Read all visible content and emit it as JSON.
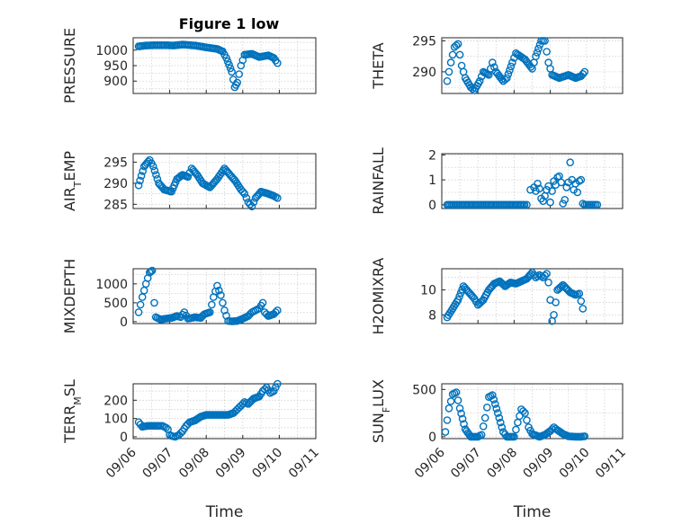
{
  "colors": {
    "marker": "#0072bd",
    "axis": "#262626",
    "grid": "#d0d0d0"
  },
  "chart_data": [
    {
      "type": "scatter",
      "title": "Figure 1 low",
      "ylabel": "PRESSURE",
      "xlim": [
        0,
        5
      ],
      "ylim": [
        860,
        1040
      ],
      "yticks": [
        900,
        950,
        1000
      ],
      "xticks": [],
      "xticklabels": [],
      "xlabel": "",
      "anchors": [
        [
          0.15,
          1012
        ],
        [
          0.35,
          1015
        ],
        [
          0.6,
          1016
        ],
        [
          0.9,
          1016
        ],
        [
          1.1,
          1015
        ],
        [
          1.35,
          1018
        ],
        [
          1.7,
          1015
        ],
        [
          2.0,
          1009
        ],
        [
          2.3,
          1004
        ],
        [
          2.45,
          996
        ],
        [
          2.55,
          975
        ],
        [
          2.7,
          930
        ],
        [
          2.78,
          880
        ],
        [
          2.85,
          895
        ],
        [
          2.95,
          950
        ],
        [
          3.05,
          985
        ],
        [
          3.25,
          988
        ],
        [
          3.45,
          978
        ],
        [
          3.7,
          983
        ],
        [
          3.85,
          975
        ],
        [
          3.95,
          958
        ]
      ]
    },
    {
      "type": "scatter",
      "title": "",
      "ylabel": "THETA",
      "xlim": [
        0,
        5
      ],
      "ylim": [
        286.5,
        295.5
      ],
      "yticks": [
        290,
        295
      ],
      "xticks": [],
      "xticklabels": [],
      "xlabel": "",
      "anchors": [
        [
          0.15,
          288.5
        ],
        [
          0.25,
          291.5
        ],
        [
          0.35,
          294
        ],
        [
          0.45,
          294.5
        ],
        [
          0.55,
          291
        ],
        [
          0.65,
          289
        ],
        [
          0.8,
          287.5
        ],
        [
          0.9,
          287
        ],
        [
          1.05,
          288.5
        ],
        [
          1.15,
          290
        ],
        [
          1.3,
          289.5
        ],
        [
          1.4,
          291.5
        ],
        [
          1.5,
          290
        ],
        [
          1.7,
          288.5
        ],
        [
          1.8,
          289
        ],
        [
          1.95,
          291.5
        ],
        [
          2.05,
          293
        ],
        [
          2.3,
          292
        ],
        [
          2.5,
          290.5
        ],
        [
          2.6,
          292.5
        ],
        [
          2.75,
          295
        ],
        [
          2.85,
          295
        ],
        [
          2.95,
          291.5
        ],
        [
          3.05,
          289.5
        ],
        [
          3.25,
          289
        ],
        [
          3.5,
          289.5
        ],
        [
          3.7,
          289
        ],
        [
          3.85,
          289.3
        ],
        [
          3.95,
          290
        ]
      ]
    },
    {
      "type": "scatter",
      "title": "",
      "ylabel": "AIR_TEMP",
      "xlim": [
        0,
        5
      ],
      "ylim": [
        284,
        297
      ],
      "yticks": [
        285,
        290,
        295
      ],
      "xticks": [],
      "xticklabels": [],
      "xlabel": "",
      "anchors": [
        [
          0.15,
          289.5
        ],
        [
          0.3,
          294
        ],
        [
          0.45,
          295.5
        ],
        [
          0.55,
          294
        ],
        [
          0.7,
          290
        ],
        [
          0.85,
          288.5
        ],
        [
          1.05,
          288
        ],
        [
          1.2,
          291
        ],
        [
          1.35,
          292
        ],
        [
          1.5,
          291.5
        ],
        [
          1.6,
          293.5
        ],
        [
          1.75,
          292
        ],
        [
          1.9,
          290
        ],
        [
          2.1,
          289
        ],
        [
          2.3,
          291
        ],
        [
          2.5,
          293.5
        ],
        [
          2.65,
          292
        ],
        [
          2.8,
          290.5
        ],
        [
          2.95,
          288.5
        ],
        [
          3.05,
          287.5
        ],
        [
          3.15,
          285.5
        ],
        [
          3.25,
          284.5
        ],
        [
          3.35,
          286.5
        ],
        [
          3.5,
          288
        ],
        [
          3.7,
          287.5
        ],
        [
          3.85,
          287
        ],
        [
          3.95,
          286.5
        ]
      ]
    },
    {
      "type": "scatter",
      "title": "",
      "ylabel": "RAINFALL",
      "xlim": [
        0,
        5
      ],
      "ylim": [
        -0.15,
        2.05
      ],
      "yticks": [
        0,
        1,
        2
      ],
      "xticks": [],
      "xticklabels": [],
      "xlabel": "",
      "anchors": [],
      "zero_range": [
        0.15,
        2.3
      ],
      "extra_points": [
        [
          2.35,
          0
        ],
        [
          2.45,
          0.6
        ],
        [
          2.55,
          0.7
        ],
        [
          2.6,
          0.55
        ],
        [
          2.65,
          0.85
        ],
        [
          2.7,
          0.65
        ],
        [
          2.75,
          0.25
        ],
        [
          2.8,
          0.15
        ],
        [
          2.85,
          0.35
        ],
        [
          2.9,
          0.6
        ],
        [
          2.95,
          0.75
        ],
        [
          3.0,
          0.1
        ],
        [
          3.05,
          0.55
        ],
        [
          3.1,
          0.95
        ],
        [
          3.15,
          0.8
        ],
        [
          3.2,
          1.1
        ],
        [
          3.25,
          1.15
        ],
        [
          3.3,
          0.9
        ],
        [
          3.35,
          0.05
        ],
        [
          3.4,
          0.2
        ],
        [
          3.45,
          0.7
        ],
        [
          3.5,
          0.9
        ],
        [
          3.55,
          1.7
        ],
        [
          3.6,
          1.0
        ],
        [
          3.65,
          0.6
        ],
        [
          3.7,
          0.85
        ],
        [
          3.75,
          0.5
        ],
        [
          3.8,
          0.95
        ],
        [
          3.85,
          1.0
        ],
        [
          3.9,
          0.05
        ],
        [
          3.95,
          0.0
        ],
        [
          4.0,
          0.0
        ],
        [
          4.05,
          0.0
        ],
        [
          4.1,
          0.0
        ],
        [
          4.15,
          0.0
        ],
        [
          4.2,
          0.0
        ],
        [
          4.25,
          0.0
        ],
        [
          4.3,
          0.0
        ]
      ]
    },
    {
      "type": "scatter",
      "title": "",
      "ylabel": "MIXDEPTH",
      "xlim": [
        0,
        5
      ],
      "ylim": [
        -50,
        1400
      ],
      "yticks": [
        0,
        500,
        1000
      ],
      "xticks": [],
      "xticklabels": [],
      "xlabel": "",
      "anchors": [
        [
          0.15,
          250
        ],
        [
          0.25,
          650
        ],
        [
          0.35,
          1000
        ],
        [
          0.45,
          1300
        ],
        [
          0.52,
          1350
        ],
        [
          0.58,
          500
        ],
        [
          0.62,
          120
        ],
        [
          0.75,
          60
        ],
        [
          0.9,
          80
        ],
        [
          1.05,
          100
        ],
        [
          1.2,
          150
        ],
        [
          1.3,
          120
        ],
        [
          1.4,
          250
        ],
        [
          1.5,
          80
        ],
        [
          1.7,
          120
        ],
        [
          1.85,
          100
        ],
        [
          1.95,
          200
        ],
        [
          2.1,
          250
        ],
        [
          2.2,
          650
        ],
        [
          2.3,
          950
        ],
        [
          2.4,
          700
        ],
        [
          2.5,
          300
        ],
        [
          2.6,
          20
        ],
        [
          2.7,
          10
        ],
        [
          2.85,
          20
        ],
        [
          3.0,
          80
        ],
        [
          3.15,
          150
        ],
        [
          3.25,
          250
        ],
        [
          3.35,
          300
        ],
        [
          3.45,
          350
        ],
        [
          3.55,
          500
        ],
        [
          3.6,
          250
        ],
        [
          3.7,
          150
        ],
        [
          3.85,
          200
        ],
        [
          3.95,
          300
        ]
      ]
    },
    {
      "type": "scatter",
      "title": "",
      "ylabel": "H2OMIXRA",
      "xlim": [
        0,
        5
      ],
      "ylim": [
        7.3,
        11.7
      ],
      "yticks": [
        8,
        10
      ],
      "xticks": [],
      "xticklabels": [],
      "xlabel": "",
      "anchors": [
        [
          0.15,
          7.8
        ],
        [
          0.3,
          8.5
        ],
        [
          0.45,
          9.2
        ],
        [
          0.6,
          10.3
        ],
        [
          0.75,
          9.8
        ],
        [
          0.9,
          9.3
        ],
        [
          1.0,
          8.8
        ],
        [
          1.15,
          9.2
        ],
        [
          1.3,
          10.0
        ],
        [
          1.45,
          10.5
        ],
        [
          1.6,
          10.7
        ],
        [
          1.75,
          10.3
        ],
        [
          1.9,
          10.6
        ],
        [
          2.05,
          10.5
        ],
        [
          2.2,
          10.7
        ],
        [
          2.35,
          10.9
        ],
        [
          2.5,
          11.4
        ],
        [
          2.6,
          11.0
        ],
        [
          2.7,
          11.2
        ],
        [
          2.8,
          11.0
        ],
        [
          2.9,
          11.3
        ],
        [
          2.95,
          10.6
        ],
        [
          3.0,
          9.2
        ],
        [
          3.05,
          7.5
        ],
        [
          3.1,
          8.0
        ],
        [
          3.2,
          10.0
        ],
        [
          3.35,
          10.4
        ],
        [
          3.55,
          9.8
        ],
        [
          3.7,
          9.6
        ],
        [
          3.8,
          9.7
        ],
        [
          3.9,
          8.5
        ]
      ]
    },
    {
      "type": "scatter",
      "title": "",
      "ylabel": "TERR_MSL",
      "xlim": [
        0,
        5
      ],
      "ylim": [
        -10,
        290
      ],
      "yticks": [
        0,
        100,
        200
      ],
      "xticks": [
        0,
        1,
        2,
        3,
        4,
        5
      ],
      "xticklabels": [
        "09/06",
        "09/07",
        "09/08",
        "09/09",
        "09/10",
        "09/11"
      ],
      "xlabel": "Time",
      "anchors": [
        [
          0.15,
          80
        ],
        [
          0.25,
          55
        ],
        [
          0.4,
          60
        ],
        [
          0.55,
          60
        ],
        [
          0.7,
          60
        ],
        [
          0.8,
          60
        ],
        [
          0.9,
          50
        ],
        [
          0.95,
          40
        ],
        [
          1.0,
          10
        ],
        [
          1.05,
          5
        ],
        [
          1.15,
          0
        ],
        [
          1.25,
          10
        ],
        [
          1.35,
          30
        ],
        [
          1.45,
          60
        ],
        [
          1.55,
          80
        ],
        [
          1.7,
          90
        ],
        [
          1.85,
          110
        ],
        [
          2.0,
          120
        ],
        [
          2.2,
          120
        ],
        [
          2.4,
          120
        ],
        [
          2.6,
          120
        ],
        [
          2.75,
          130
        ],
        [
          2.85,
          150
        ],
        [
          2.95,
          170
        ],
        [
          3.05,
          190
        ],
        [
          3.15,
          180
        ],
        [
          3.3,
          210
        ],
        [
          3.45,
          220
        ],
        [
          3.55,
          250
        ],
        [
          3.65,
          270
        ],
        [
          3.75,
          240
        ],
        [
          3.85,
          250
        ],
        [
          3.95,
          290
        ]
      ]
    },
    {
      "type": "scatter",
      "title": "",
      "ylabel": "SUN_FLUX",
      "xlim": [
        0,
        5
      ],
      "ylim": [
        -20,
        560
      ],
      "yticks": [
        0,
        500
      ],
      "xticks": [
        0,
        1,
        2,
        3,
        4,
        5
      ],
      "xticklabels": [
        "09/06",
        "09/07",
        "09/08",
        "09/09",
        "09/10",
        "09/11"
      ],
      "xlabel": "Time",
      "anchors": [
        [
          0.1,
          50
        ],
        [
          0.2,
          300
        ],
        [
          0.3,
          450
        ],
        [
          0.4,
          470
        ],
        [
          0.5,
          300
        ],
        [
          0.65,
          80
        ],
        [
          0.8,
          0
        ],
        [
          1.0,
          0
        ],
        [
          1.1,
          20
        ],
        [
          1.2,
          200
        ],
        [
          1.3,
          420
        ],
        [
          1.4,
          440
        ],
        [
          1.55,
          250
        ],
        [
          1.7,
          50
        ],
        [
          1.8,
          0
        ],
        [
          2.0,
          0
        ],
        [
          2.1,
          150
        ],
        [
          2.2,
          290
        ],
        [
          2.3,
          250
        ],
        [
          2.4,
          100
        ],
        [
          2.5,
          30
        ],
        [
          2.7,
          0
        ],
        [
          2.85,
          20
        ],
        [
          3.0,
          60
        ],
        [
          3.1,
          100
        ],
        [
          3.2,
          70
        ],
        [
          3.35,
          30
        ],
        [
          3.5,
          5
        ],
        [
          3.7,
          0
        ],
        [
          3.85,
          0
        ],
        [
          3.95,
          5
        ]
      ]
    }
  ]
}
